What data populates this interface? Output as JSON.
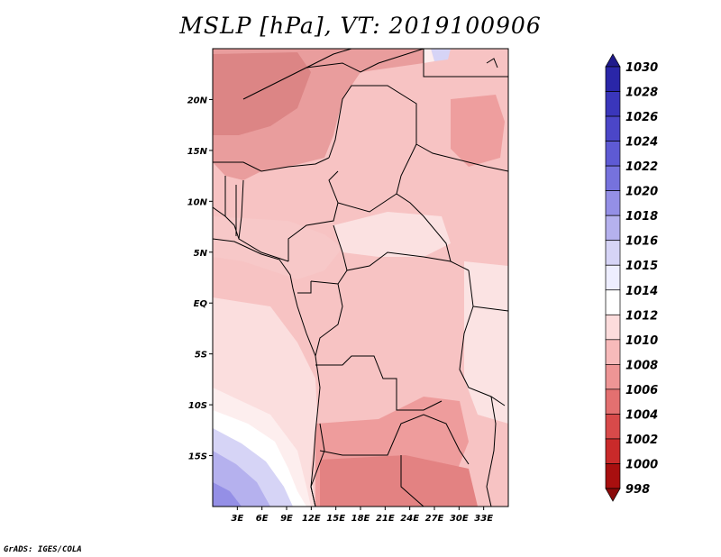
{
  "title": "MSLP [hPa], VT: 2019100906",
  "credit": "GrADS: IGES/COLA",
  "map": {
    "variable": "Mean sea level pressure",
    "units": "hPa",
    "region": "Central Africa",
    "lat_range": [
      -20,
      25
    ],
    "lon_range": [
      0,
      36
    ],
    "lat_ticks": [
      {
        "value": 20,
        "label": "20N"
      },
      {
        "value": 15,
        "label": "15N"
      },
      {
        "value": 10,
        "label": "10N"
      },
      {
        "value": 5,
        "label": "5N"
      },
      {
        "value": 0,
        "label": "EQ"
      },
      {
        "value": -5,
        "label": "5S"
      },
      {
        "value": -10,
        "label": "10S"
      },
      {
        "value": -15,
        "label": "15S"
      }
    ],
    "lon_ticks": [
      {
        "value": 3,
        "label": "3E"
      },
      {
        "value": 6,
        "label": "6E"
      },
      {
        "value": 9,
        "label": "9E"
      },
      {
        "value": 12,
        "label": "12E"
      },
      {
        "value": 15,
        "label": "15E"
      },
      {
        "value": 18,
        "label": "18E"
      },
      {
        "value": 21,
        "label": "21E"
      },
      {
        "value": 24,
        "label": "24E"
      },
      {
        "value": 27,
        "label": "27E"
      },
      {
        "value": 30,
        "label": "30E"
      },
      {
        "value": 33,
        "label": "33E"
      }
    ]
  },
  "colorbar": {
    "labels_top_to_bottom": [
      "1030",
      "1028",
      "1026",
      "1024",
      "1022",
      "1020",
      "1018",
      "1016",
      "1015",
      "1014",
      "1012",
      "1010",
      "1008",
      "1006",
      "1004",
      "1002",
      "1000",
      "998"
    ],
    "colors_top_to_bottom": [
      "#1f1a8c",
      "#2a26a8",
      "#3a36bb",
      "#4b46c8",
      "#5e5ad4",
      "#7672dd",
      "#948fe6",
      "#b5b1ee",
      "#d6d4f6",
      "#eeeeff",
      "#ffffff",
      "#fcdcdc",
      "#f7baba",
      "#ee9595",
      "#e37070",
      "#d84a4a",
      "#c92a2a",
      "#a80f0f",
      "#8a0a0a"
    ]
  }
}
